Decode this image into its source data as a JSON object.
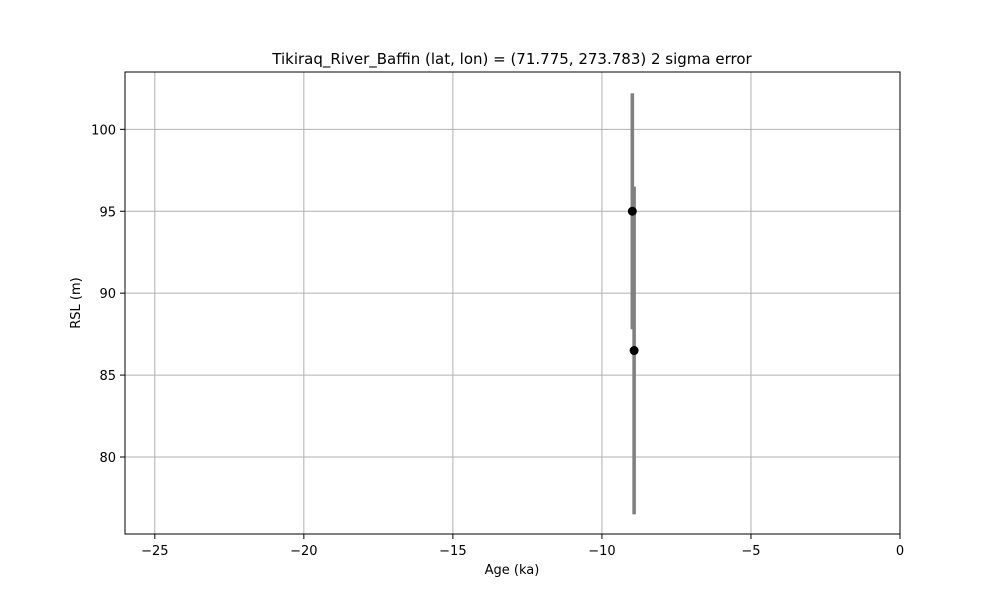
{
  "chart_data": {
    "type": "scatter",
    "title": "Tikiraq_River_Baffin (lat, lon) = (71.775, 273.783)  2 sigma error",
    "xlabel": "Age (ka)",
    "ylabel": "RSL (m)",
    "xlim": [
      -26,
      0
    ],
    "ylim": [
      75.3,
      103.5
    ],
    "xticks": [
      -25,
      -20,
      -15,
      -10,
      -5,
      0
    ],
    "xtick_labels": [
      "−25",
      "−20",
      "−15",
      "−10",
      "−5",
      "0"
    ],
    "yticks": [
      80,
      85,
      90,
      95,
      100
    ],
    "ytick_labels": [
      "80",
      "85",
      "90",
      "95",
      "100"
    ],
    "grid": true,
    "legend": "none",
    "colors": {
      "point": "#000000",
      "errorbar": "#808080",
      "grid": "#b0b0b0"
    },
    "points": [
      {
        "x": -8.98,
        "y": 95.0,
        "y_err": 7.2,
        "x_err": 0.06
      },
      {
        "x": -8.92,
        "y": 86.5,
        "y_err": 10.0,
        "x_err": 0.06
      }
    ]
  }
}
